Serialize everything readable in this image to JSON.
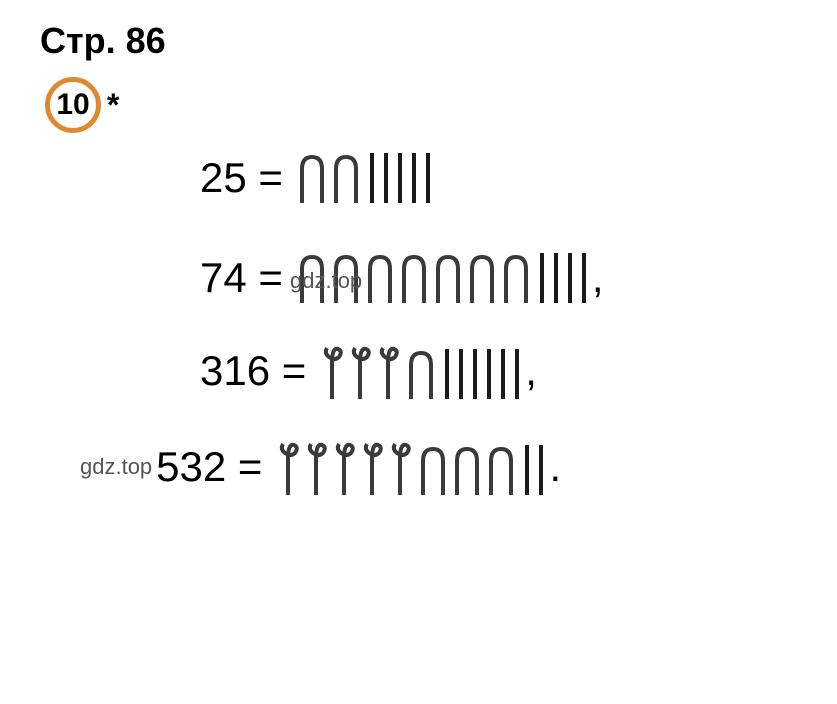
{
  "header": "Стр. 86",
  "problem_number": "10",
  "asterisk": "*",
  "watermark_text": "gdz.top",
  "rows": [
    {
      "label": "25 =",
      "hundreds": 0,
      "tens": 2,
      "ones": 5,
      "trailing": "",
      "prefix": ""
    },
    {
      "label": "74 =",
      "hundreds": 0,
      "tens": 7,
      "ones": 4,
      "trailing": ",",
      "prefix": ""
    },
    {
      "label": "316 =",
      "hundreds": 3,
      "tens": 1,
      "ones": 6,
      "trailing": ",",
      "prefix": ""
    },
    {
      "label": "532 =",
      "hundreds": 5,
      "tens": 3,
      "ones": 2,
      "trailing": ".",
      "prefix": "gdz.top"
    }
  ],
  "colors": {
    "circle_border": "#e08830",
    "text": "#000000",
    "symbol_stroke": "#3a3a3a",
    "background": "#ffffff"
  }
}
